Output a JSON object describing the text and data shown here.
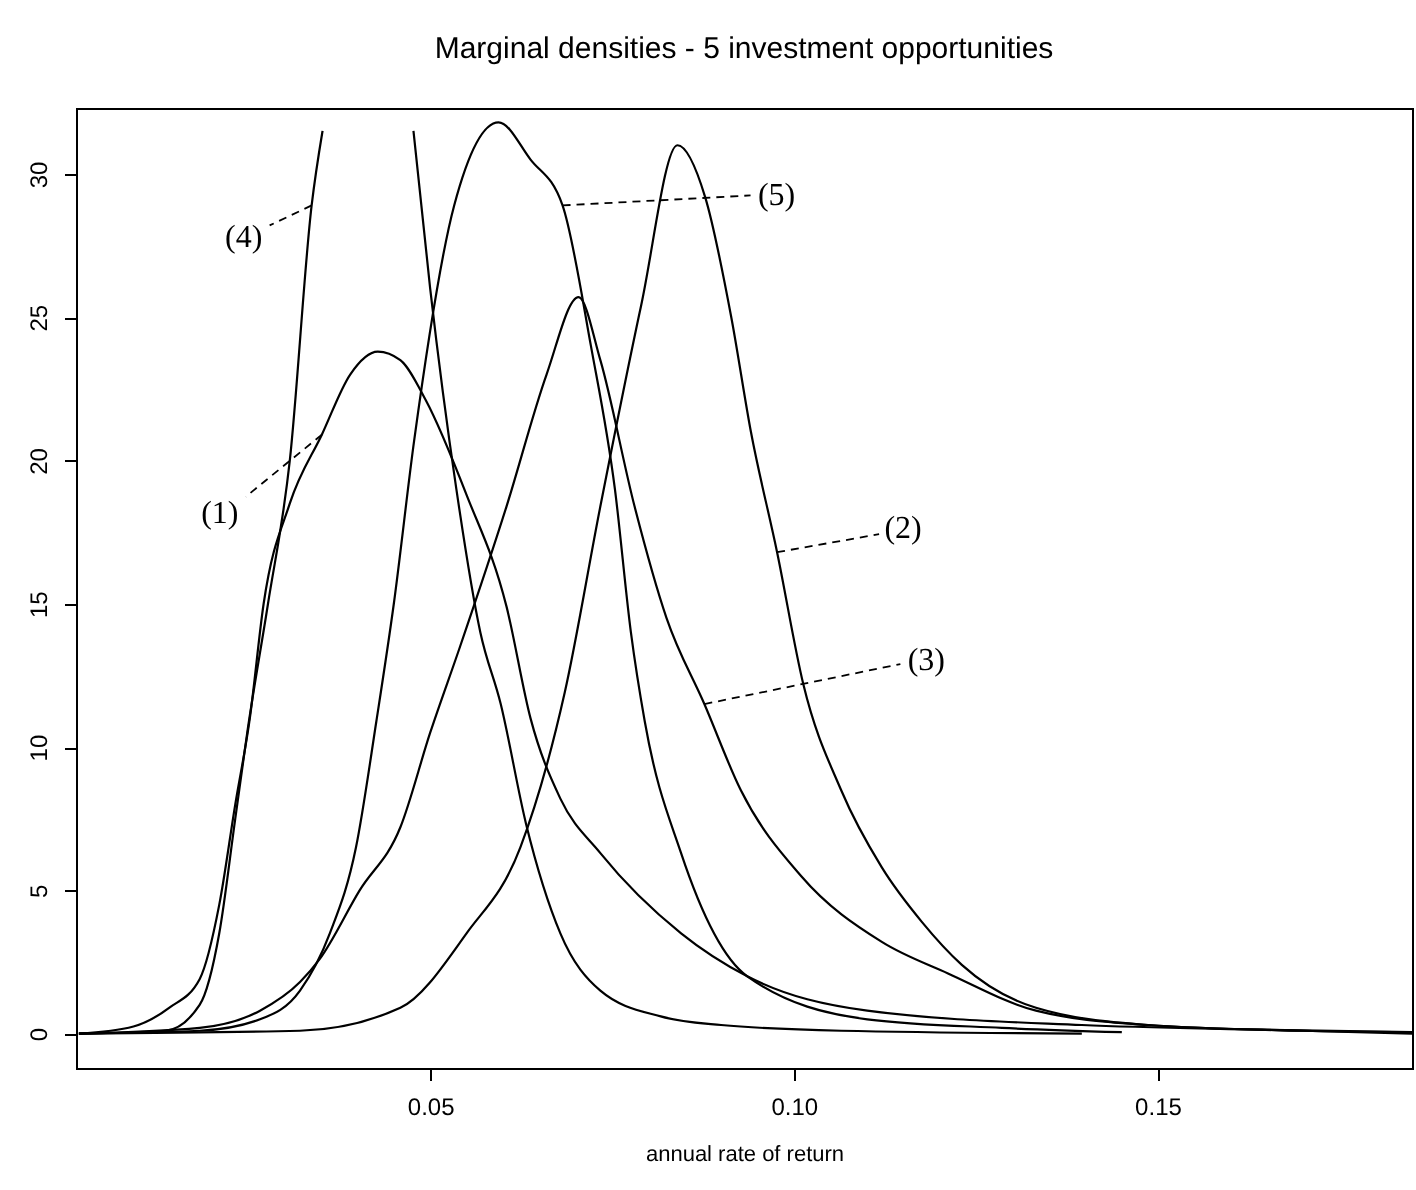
{
  "chart_data": {
    "type": "line",
    "title": "Marginal densities - 5 investment opportunities",
    "xlabel": "annual rate of return",
    "xlim": [
      0.0013,
      0.185
    ],
    "xticks": [
      0.05,
      {
        "value": 0.1,
        "label": "0.10"
      },
      0.15
    ],
    "ylim": [
      -1.2,
      32.3
    ],
    "yticks": [
      0,
      5,
      10,
      15,
      20,
      25,
      30
    ],
    "series": [
      {
        "color": "#000000",
        "x": [
          0.0017,
          0.0092,
          0.0141,
          0.0183,
          0.021,
          0.0232,
          0.0252,
          0.0271,
          0.0307,
          0.0351,
          0.039,
          0.0428,
          0.0459,
          0.0494,
          0.055,
          0.0605,
          0.0638,
          0.0679,
          0.0734,
          0.0845,
          0.0936,
          0.1101,
          0.1396,
          0.1617,
          0.185
        ],
        "values": [
          0,
          0.25,
          0.9,
          1.9,
          4.5,
          8,
          11,
          15,
          18.5,
          20.9,
          23,
          23.8,
          23.5,
          22.1,
          18.8,
          14.9,
          11,
          8.2,
          6.3,
          3.5,
          2.0,
          0.8,
          0.3,
          0.15,
          0.05
        ]
      },
      {
        "color": "#000000",
        "x": [
          0.0017,
          0.0321,
          0.0459,
          0.055,
          0.0624,
          0.0685,
          0.0734,
          0.079,
          0.084,
          0.0878,
          0.0914,
          0.0941,
          0.0977,
          0.1013,
          0.1065,
          0.1121,
          0.1176,
          0.1231,
          0.1333,
          0.1487,
          0.17,
          0.185
        ],
        "values": [
          0,
          0.1,
          0.9,
          3.5,
          6.5,
          11.9,
          18.4,
          25.4,
          31.0,
          29.2,
          25,
          21,
          16.8,
          12.2,
          8.5,
          5.8,
          3.9,
          2.4,
          0.9,
          0.3,
          0.1,
          0
        ]
      },
      {
        "color": "#000000",
        "x": [
          0.0017,
          0.0183,
          0.0266,
          0.0321,
          0.0348,
          0.0403,
          0.0459,
          0.05,
          0.0541,
          0.0605,
          0.066,
          0.0704,
          0.0734,
          0.0781,
          0.0825,
          0.0877,
          0.0927,
          0.101,
          0.1121,
          0.1212,
          0.1333,
          0.1487,
          0.17,
          0.185
        ],
        "values": [
          0,
          0.2,
          0.8,
          1.8,
          2.6,
          5,
          7.2,
          10.5,
          13.5,
          18.4,
          23,
          25.7,
          23.5,
          18.4,
          14.5,
          11.5,
          8.5,
          5.5,
          3.2,
          2.1,
          0.8,
          0.3,
          0.1,
          0.05
        ]
      },
      {
        "color": "#000000",
        "x": [
          0.0017,
          0.0136,
          0.0183,
          0.021,
          0.0232,
          0.0249,
          0.0277,
          0.0307,
          0.0337,
          0.0352,
          0.04,
          0.0477,
          0.05,
          0.0536,
          0.0569,
          0.0597,
          0.0632,
          0.0679,
          0.0734,
          0.0817,
          0.09,
          0.1065,
          0.1396
        ],
        "values": [
          0,
          0.1,
          1.0,
          3.5,
          7.5,
          10.6,
          15,
          20,
          28.9,
          31.5,
          null,
          31.5,
          26,
          19,
          14,
          11.5,
          7.3,
          3.5,
          1.5,
          0.6,
          0.3,
          0.1,
          0
        ]
      },
      {
        "color": "#000000",
        "x": [
          0.0017,
          0.0183,
          0.0266,
          0.0321,
          0.0362,
          0.0398,
          0.0426,
          0.045,
          0.0478,
          0.0533,
          0.0594,
          0.0638,
          0.0682,
          0.0721,
          0.0754,
          0.0776,
          0.0795,
          0.0845,
          0.0936,
          0.1101,
          0.1286,
          0.1451
        ],
        "values": [
          0,
          0.1,
          0.5,
          1.5,
          3.5,
          6.5,
          10.9,
          15,
          20.7,
          28.9,
          31.8,
          30.5,
          28.9,
          24,
          19,
          14,
          10.9,
          6.3,
          2.0,
          0.5,
          0.2,
          0.05
        ]
      }
    ],
    "annotations": [
      {
        "text": "(1)",
        "x": 0.0351,
        "y": 20.9
      },
      {
        "text": "(2)",
        "x": 0.0977,
        "y": 16.8
      },
      {
        "text": "(3)",
        "x": 0.0877,
        "y": 11.5
      },
      {
        "text": "(4)",
        "x": 0.0337,
        "y": 28.9
      },
      {
        "text": "(5)",
        "x": 0.0682,
        "y": 28.9
      }
    ]
  }
}
